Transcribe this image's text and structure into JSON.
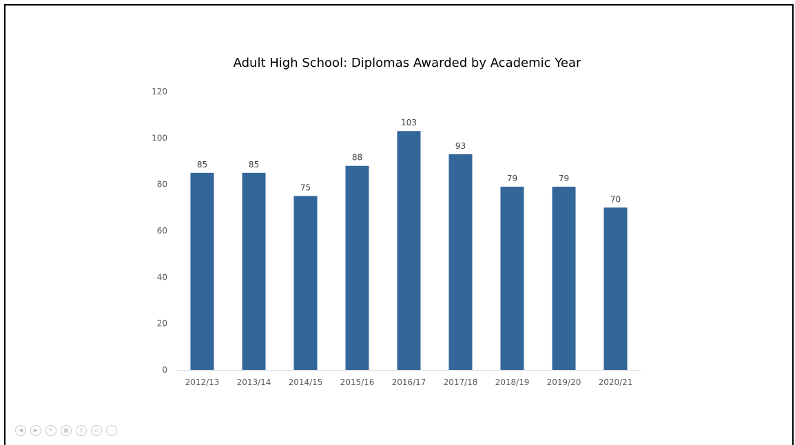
{
  "chart_data": {
    "type": "bar",
    "title": "Adult High School:  Diplomas Awarded by Academic Year",
    "categories": [
      "2012/13",
      "2013/14",
      "2014/15",
      "2015/16",
      "2016/17",
      "2017/18",
      "2018/19",
      "2019/20",
      "2020/21"
    ],
    "values": [
      85,
      85,
      75,
      88,
      103,
      93,
      79,
      79,
      70
    ],
    "y_ticks": [
      "0",
      "20",
      "40",
      "60",
      "80",
      "100",
      "120"
    ],
    "ylim": [
      0,
      120
    ],
    "xlabel": "",
    "ylabel": "",
    "grid": false,
    "legend": "none",
    "bar_color": "#336699",
    "data_labels": [
      "85",
      "85",
      "75",
      "88",
      "103",
      "93",
      "79",
      "79",
      "70"
    ]
  },
  "toolbar": {
    "buttons": [
      {
        "name": "previous-slide-icon",
        "glyph": "◀"
      },
      {
        "name": "next-slide-icon",
        "glyph": "▶"
      },
      {
        "name": "pen-icon",
        "glyph": "✎"
      },
      {
        "name": "slides-grid-icon",
        "glyph": "▦"
      },
      {
        "name": "zoom-icon",
        "glyph": "⚲"
      },
      {
        "name": "subtitles-icon",
        "glyph": "▭"
      },
      {
        "name": "more-options-icon",
        "glyph": "⋯"
      }
    ]
  }
}
